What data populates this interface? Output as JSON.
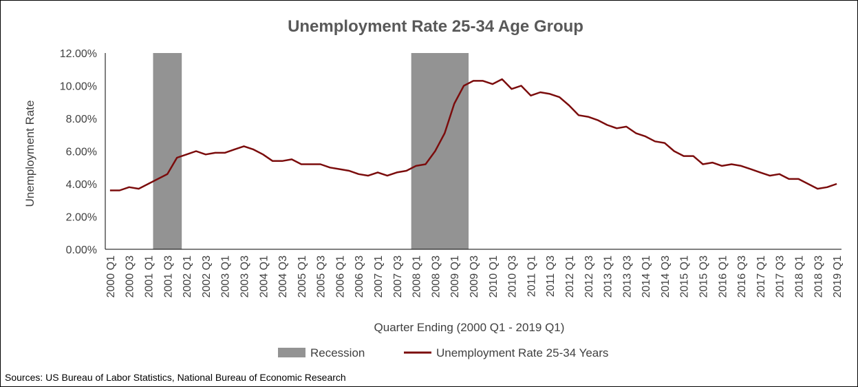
{
  "chart_data": {
    "type": "line",
    "title": "Unemployment Rate 25-34 Age Group",
    "xlabel": "Quarter Ending (2000 Q1 - 2019 Q1)",
    "ylabel": "Unemployment  Rate",
    "ylim": [
      0,
      12
    ],
    "yticks": [
      "0.00%",
      "2.00%",
      "4.00%",
      "6.00%",
      "8.00%",
      "10.00%",
      "12.00%"
    ],
    "x_tick_labels": [
      "2000 Q1",
      "2000 Q3",
      "2001 Q1",
      "2001 Q3",
      "2002 Q1",
      "2002 Q3",
      "2003 Q1",
      "2003 Q3",
      "2004 Q1",
      "2004 Q3",
      "2005 Q1",
      "2005 Q3",
      "2006 Q1",
      "2006 Q3",
      "2007 Q1",
      "2007 Q3",
      "2008 Q1",
      "2008 Q3",
      "2009 Q1",
      "2009 Q3",
      "2010 Q1",
      "2010 Q3",
      "2011 Q1",
      "2011 Q3",
      "2012 Q1",
      "2012 Q3",
      "2013 Q1",
      "2013 Q3",
      "2014 Q1",
      "2014 Q3",
      "2015 Q1",
      "2015 Q3",
      "2016 Q1",
      "2016 Q3",
      "2017 Q1",
      "2017 Q3",
      "2018 Q1",
      "2018 Q3",
      "2019 Q1"
    ],
    "recessions": [
      {
        "start": "2001 Q2",
        "end": "2001 Q4"
      },
      {
        "start": "2008 Q1",
        "end": "2009 Q2"
      }
    ],
    "series": [
      {
        "name": "Unemployment Rate 25-34 Years",
        "color": "#7b0c0c",
        "x": [
          "2000 Q1",
          "2000 Q2",
          "2000 Q3",
          "2000 Q4",
          "2001 Q1",
          "2001 Q2",
          "2001 Q3",
          "2001 Q4",
          "2002 Q1",
          "2002 Q2",
          "2002 Q3",
          "2002 Q4",
          "2003 Q1",
          "2003 Q2",
          "2003 Q3",
          "2003 Q4",
          "2004 Q1",
          "2004 Q2",
          "2004 Q3",
          "2004 Q4",
          "2005 Q1",
          "2005 Q2",
          "2005 Q3",
          "2005 Q4",
          "2006 Q1",
          "2006 Q2",
          "2006 Q3",
          "2006 Q4",
          "2007 Q1",
          "2007 Q2",
          "2007 Q3",
          "2007 Q4",
          "2008 Q1",
          "2008 Q2",
          "2008 Q3",
          "2008 Q4",
          "2009 Q1",
          "2009 Q2",
          "2009 Q3",
          "2009 Q4",
          "2010 Q1",
          "2010 Q2",
          "2010 Q3",
          "2010 Q4",
          "2011 Q1",
          "2011 Q2",
          "2011 Q3",
          "2011 Q4",
          "2012 Q1",
          "2012 Q2",
          "2012 Q3",
          "2012 Q4",
          "2013 Q1",
          "2013 Q2",
          "2013 Q3",
          "2013 Q4",
          "2014 Q1",
          "2014 Q2",
          "2014 Q3",
          "2014 Q4",
          "2015 Q1",
          "2015 Q2",
          "2015 Q3",
          "2015 Q4",
          "2016 Q1",
          "2016 Q2",
          "2016 Q3",
          "2016 Q4",
          "2017 Q1",
          "2017 Q2",
          "2017 Q3",
          "2017 Q4",
          "2018 Q1",
          "2018 Q2",
          "2018 Q3",
          "2018 Q4",
          "2019 Q1"
        ],
        "values": [
          3.6,
          3.6,
          3.8,
          3.7,
          4.0,
          4.3,
          4.6,
          5.6,
          5.8,
          6.0,
          5.8,
          5.9,
          5.9,
          6.1,
          6.3,
          6.1,
          5.8,
          5.4,
          5.4,
          5.5,
          5.2,
          5.2,
          5.2,
          5.0,
          4.9,
          4.8,
          4.6,
          4.5,
          4.7,
          4.5,
          4.7,
          4.8,
          5.1,
          5.2,
          6.0,
          7.1,
          8.9,
          10.0,
          10.3,
          10.3,
          10.1,
          10.4,
          9.8,
          10.0,
          9.4,
          9.6,
          9.5,
          9.3,
          8.8,
          8.2,
          8.1,
          7.9,
          7.6,
          7.4,
          7.5,
          7.1,
          6.9,
          6.6,
          6.5,
          6.0,
          5.7,
          5.7,
          5.2,
          5.3,
          5.1,
          5.2,
          5.1,
          4.9,
          4.7,
          4.5,
          4.6,
          4.3,
          4.3,
          4.0,
          3.7,
          3.8,
          4.0
        ]
      }
    ],
    "legend": {
      "position": "bottom",
      "items": [
        {
          "label": "Recession",
          "color": "#939393",
          "kind": "box"
        },
        {
          "label": "Unemployment Rate 25-34 Years",
          "color": "#7b0c0c",
          "kind": "line"
        }
      ]
    },
    "grid": false
  },
  "source_note": "Sources: US Bureau of Labor Statistics, National Bureau of Economic Research"
}
